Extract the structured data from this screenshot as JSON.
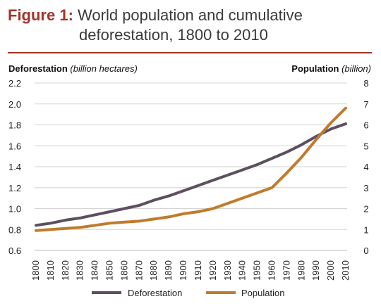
{
  "figure": {
    "prefix": "Figure 1:",
    "title_line1": "World population and cumulative",
    "title_line2": "deforestation, 1800 to 2010"
  },
  "chart_data": {
    "type": "line",
    "title": "World population and cumulative deforestation, 1800 to 2010",
    "x": [
      1800,
      1810,
      1820,
      1830,
      1840,
      1850,
      1860,
      1870,
      1880,
      1890,
      1900,
      1910,
      1920,
      1930,
      1940,
      1950,
      1960,
      1970,
      1980,
      1990,
      2000,
      2010
    ],
    "y_left": {
      "label_bold": "Deforestation",
      "label_italic": "(billion hectares)",
      "ylim": [
        0.6,
        2.2
      ],
      "ticks": [
        "0.6",
        "0.8",
        "1.0",
        "1.2",
        "1.4",
        "1.6",
        "1.8",
        "2.0",
        "2.2"
      ]
    },
    "y_right": {
      "label_bold": "Population",
      "label_italic": "(billion)",
      "ylim": [
        0,
        8
      ],
      "ticks": [
        "0",
        "1",
        "2",
        "3",
        "4",
        "5",
        "6",
        "7",
        "8"
      ]
    },
    "series": [
      {
        "name": "Deforestation",
        "axis": "left",
        "color": "#5e4f60",
        "values": [
          0.84,
          0.86,
          0.89,
          0.91,
          0.94,
          0.97,
          1.0,
          1.03,
          1.08,
          1.12,
          1.17,
          1.22,
          1.27,
          1.32,
          1.37,
          1.42,
          1.48,
          1.54,
          1.61,
          1.69,
          1.76,
          1.81
        ]
      },
      {
        "name": "Population",
        "axis": "right",
        "color": "#c07b2c",
        "values": [
          0.95,
          1.0,
          1.05,
          1.1,
          1.2,
          1.3,
          1.35,
          1.4,
          1.5,
          1.6,
          1.75,
          1.85,
          2.0,
          2.25,
          2.5,
          2.75,
          3.0,
          3.7,
          4.45,
          5.3,
          6.1,
          6.8
        ]
      }
    ],
    "grid": "horizontal",
    "legend": "bottom-center"
  }
}
